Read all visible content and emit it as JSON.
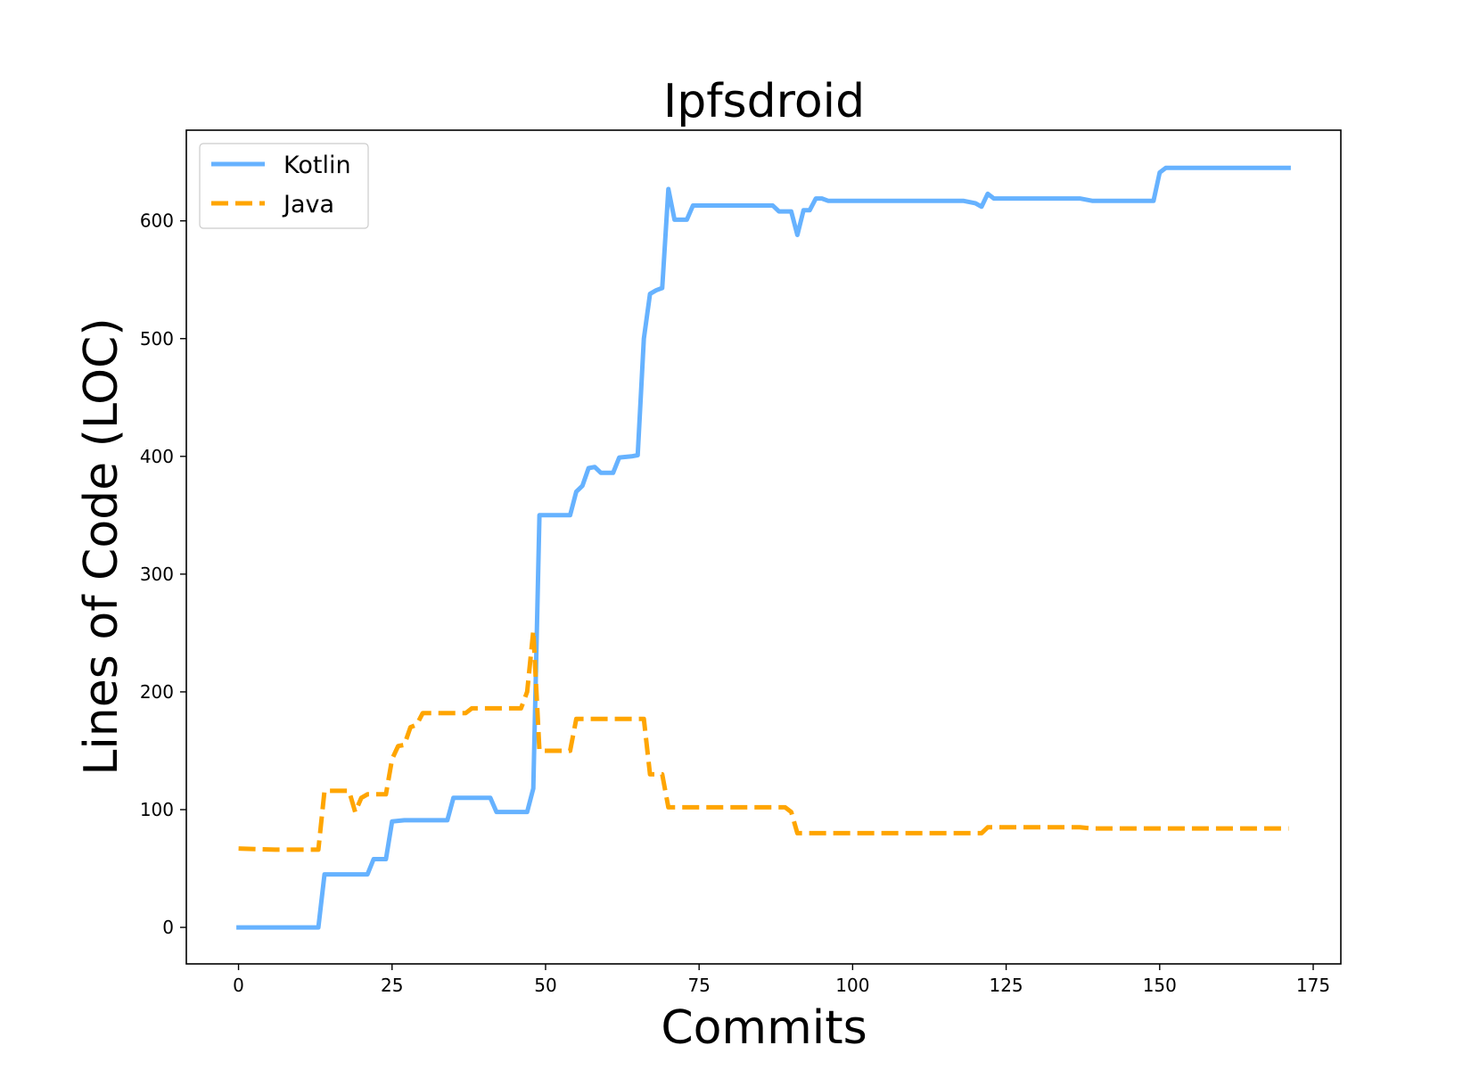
{
  "chart_data": {
    "type": "line",
    "title": "Ipfsdroid",
    "xlabel": "Commits",
    "ylabel": "Lines of Code (LOC)",
    "xlim": [
      -8.5,
      179.5
    ],
    "ylim": [
      -31,
      677
    ],
    "xticks": [
      0,
      25,
      50,
      75,
      100,
      125,
      150,
      175
    ],
    "yticks": [
      0,
      100,
      200,
      300,
      400,
      500,
      600
    ],
    "grid": false,
    "legend_position": "top-left",
    "series": [
      {
        "name": "Kotlin",
        "color": "#66b2ff",
        "style": "solid",
        "points": [
          [
            0,
            0
          ],
          [
            13,
            0
          ],
          [
            14,
            45
          ],
          [
            21,
            45
          ],
          [
            22,
            58
          ],
          [
            24,
            58
          ],
          [
            25,
            90
          ],
          [
            27,
            91
          ],
          [
            34,
            91
          ],
          [
            35,
            110
          ],
          [
            41,
            110
          ],
          [
            42,
            98
          ],
          [
            47,
            98
          ],
          [
            48,
            118
          ],
          [
            49,
            350
          ],
          [
            54,
            350
          ],
          [
            55,
            370
          ],
          [
            56,
            375
          ],
          [
            57,
            390
          ],
          [
            58,
            391
          ],
          [
            59,
            386
          ],
          [
            61,
            386
          ],
          [
            62,
            399
          ],
          [
            64,
            400
          ],
          [
            65,
            401
          ],
          [
            66,
            500
          ],
          [
            67,
            538
          ],
          [
            68,
            541
          ],
          [
            69,
            543
          ],
          [
            70,
            627
          ],
          [
            71,
            601
          ],
          [
            73,
            601
          ],
          [
            74,
            613
          ],
          [
            87,
            613
          ],
          [
            88,
            608
          ],
          [
            90,
            608
          ],
          [
            91,
            588
          ],
          [
            92,
            609
          ],
          [
            93,
            609
          ],
          [
            94,
            619
          ],
          [
            95,
            619
          ],
          [
            96,
            617
          ],
          [
            118,
            617
          ],
          [
            120,
            615
          ],
          [
            121,
            612
          ],
          [
            122,
            623
          ],
          [
            123,
            619
          ],
          [
            137,
            619
          ],
          [
            139,
            617
          ],
          [
            149,
            617
          ],
          [
            150,
            641
          ],
          [
            151,
            645
          ],
          [
            171,
            645
          ]
        ]
      },
      {
        "name": "Java",
        "color": "#ffa500",
        "style": "dashed",
        "points": [
          [
            0,
            67
          ],
          [
            6,
            66
          ],
          [
            13,
            66
          ],
          [
            14,
            116
          ],
          [
            18,
            116
          ],
          [
            19,
            98
          ],
          [
            20,
            110
          ],
          [
            21,
            113
          ],
          [
            24,
            113
          ],
          [
            25,
            143
          ],
          [
            26,
            154
          ],
          [
            27,
            155
          ],
          [
            28,
            170
          ],
          [
            29,
            172
          ],
          [
            30,
            182
          ],
          [
            37,
            182
          ],
          [
            38,
            186
          ],
          [
            46,
            186
          ],
          [
            47,
            200
          ],
          [
            48,
            252
          ],
          [
            49,
            150
          ],
          [
            54,
            150
          ],
          [
            55,
            177
          ],
          [
            66,
            177
          ],
          [
            67,
            130
          ],
          [
            69,
            130
          ],
          [
            70,
            102
          ],
          [
            89,
            102
          ],
          [
            90,
            98
          ],
          [
            91,
            80
          ],
          [
            121,
            80
          ],
          [
            122,
            85
          ],
          [
            137,
            85
          ],
          [
            139,
            84
          ],
          [
            171,
            84
          ]
        ]
      }
    ]
  }
}
